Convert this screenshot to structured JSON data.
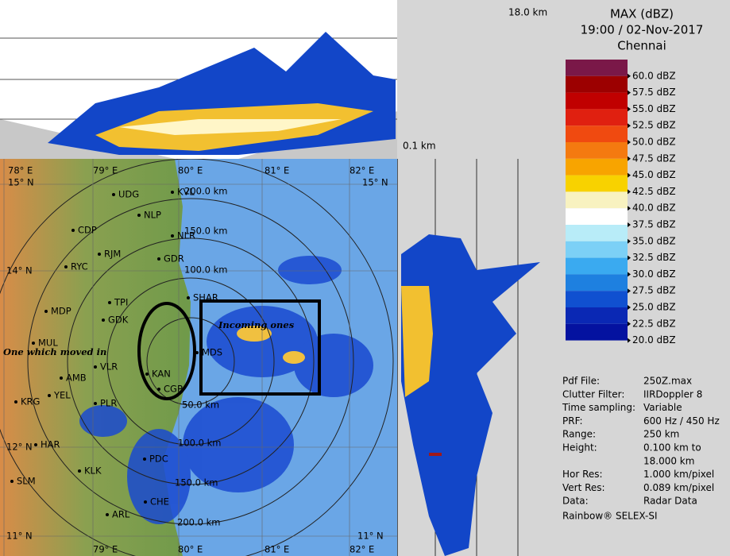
{
  "header": {
    "title": "MAX (dBZ)",
    "datetime": "19:00 / 02-Nov-2017",
    "location": "Chennai"
  },
  "height_top": "18.0 km",
  "height_bottom": "0.1 km",
  "legend": [
    {
      "label": "60.0 dBZ",
      "color": "#7a1848"
    },
    {
      "label": "57.5 dBZ",
      "color": "#9c0000"
    },
    {
      "label": "55.0 dBZ",
      "color": "#c00000"
    },
    {
      "label": "52.5 dBZ",
      "color": "#e02010"
    },
    {
      "label": "50.0 dBZ",
      "color": "#f04a10"
    },
    {
      "label": "47.5 dBZ",
      "color": "#f47a10"
    },
    {
      "label": "45.0 dBZ",
      "color": "#f8a400"
    },
    {
      "label": "42.5 dBZ",
      "color": "#f8d200"
    },
    {
      "label": "40.0 dBZ",
      "color": "#f8f2c0"
    },
    {
      "label": "37.5 dBZ",
      "color": "#ffffff"
    },
    {
      "label": "35.0 dBZ",
      "color": "#b8ecf8"
    },
    {
      "label": "32.5 dBZ",
      "color": "#7cd0f6"
    },
    {
      "label": "30.0 dBZ",
      "color": "#3aaaf0"
    },
    {
      "label": "27.5 dBZ",
      "color": "#1e80e0"
    },
    {
      "label": "25.0 dBZ",
      "color": "#1050d0"
    },
    {
      "label": "22.5 dBZ",
      "color": "#0a28b4"
    },
    {
      "label": "20.0 dBZ",
      "color": "#0412a0"
    }
  ],
  "info": [
    [
      "Pdf File:",
      "250Z.max"
    ],
    [
      "Clutter Filter:",
      "IIRDoppler 8"
    ],
    [
      "Time sampling:",
      "Variable"
    ],
    [
      "PRF:",
      "600 Hz / 450 Hz"
    ],
    [
      "Range:",
      "250 km"
    ],
    [
      "Height:",
      "0.100 km to"
    ],
    [
      "",
      "18.000 km"
    ],
    [
      "Hor Res:",
      "1.000 km/pixel"
    ],
    [
      "Vert Res:",
      "0.089 km/pixel"
    ],
    [
      "Data:",
      "Radar Data"
    ]
  ],
  "footer": "Rainbow® SELEX-SI",
  "map": {
    "lon_labels": [
      "78° E",
      "79° E",
      "80° E",
      "81° E",
      "82° E"
    ],
    "lat_labels": [
      "15° N",
      "14° N",
      "12° N",
      "11° N"
    ],
    "cities": [
      "UDG",
      "NLP",
      "CDP",
      "RJM",
      "GDR",
      "RYC",
      "TPI",
      "MDP",
      "GDK",
      "MUL",
      "KAN",
      "VLR",
      "AMB",
      "YEL",
      "KRG",
      "PLR",
      "HAR",
      "PDC",
      "KLK",
      "SLM",
      "ARL",
      "CHE",
      "CGP",
      "MDS",
      "SHAR",
      "KVL",
      "NLR"
    ],
    "ranges": [
      "200.0 km",
      "150.0 km",
      "100.0 km",
      "50.0 km"
    ],
    "annotations": [
      "Incoming ones",
      "One which moved in"
    ]
  }
}
